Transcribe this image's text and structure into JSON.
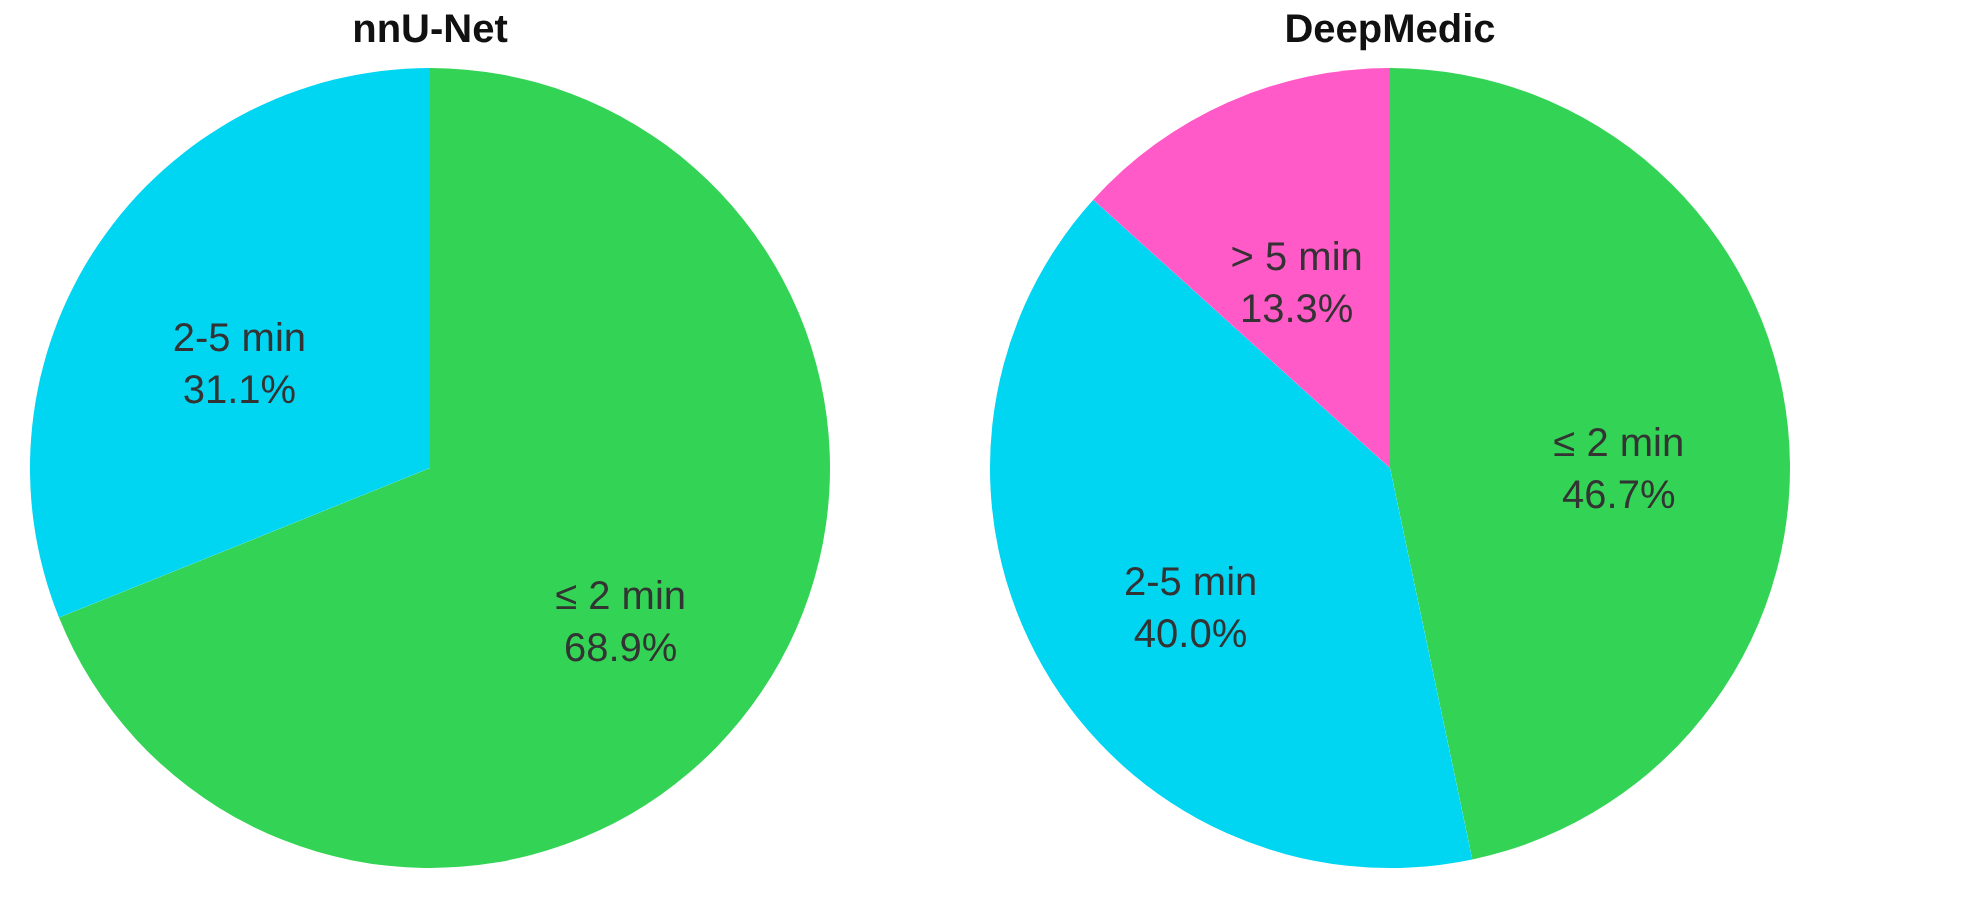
{
  "chart_data": [
    {
      "type": "pie",
      "title": "nnU-Net",
      "categories": [
        "≤ 2 min",
        "2-5 min"
      ],
      "values": [
        68.9,
        31.1
      ],
      "colors": [
        "#33d455",
        "#00d5f2"
      ],
      "value_labels": [
        "68.9%",
        "31.1%"
      ],
      "legend": false
    },
    {
      "type": "pie",
      "title": "DeepMedic",
      "categories": [
        "≤ 2 min",
        "2-5 min",
        "> 5 min"
      ],
      "values": [
        46.7,
        40.0,
        13.3
      ],
      "colors": [
        "#33d455",
        "#00d5f2",
        "#ff5ac8"
      ],
      "value_labels": [
        "46.7%",
        "40.0%",
        "13.3%"
      ],
      "legend": false
    }
  ]
}
